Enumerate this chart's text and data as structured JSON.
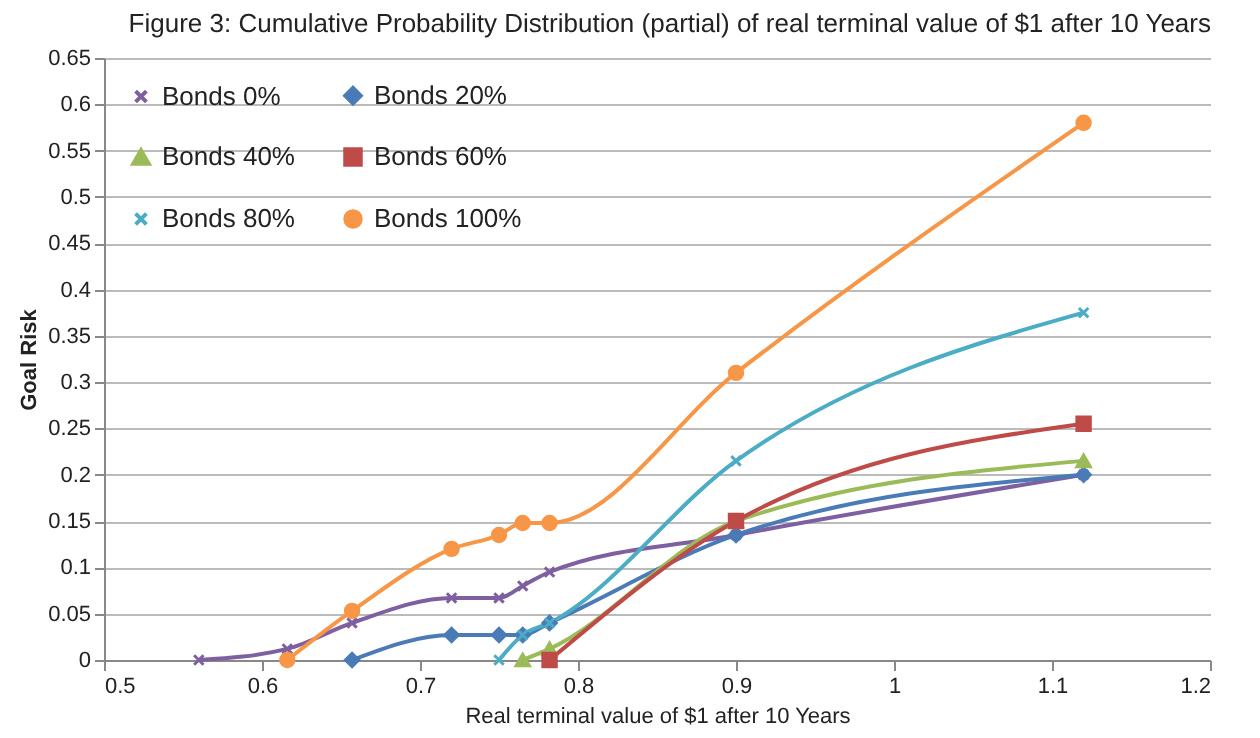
{
  "chart_data": {
    "type": "line",
    "title": "Figure 3: Cumulative Probability Distribution (partial) of  real terminal value of $1 after 10 Years",
    "xlabel": "Real terminal value of $1 after  10 Years",
    "ylabel": "Goal Risk",
    "xlim": [
      0.5,
      1.2
    ],
    "xticks": [
      0.5,
      0.6,
      0.7,
      0.8,
      0.9,
      1,
      1.1,
      1.2
    ],
    "ylim": [
      0,
      0.65
    ],
    "yticks": [
      0,
      0.05,
      0.1,
      0.15,
      0.2,
      0.25,
      0.3,
      0.35,
      0.4,
      0.45,
      0.5,
      0.55,
      0.6,
      0.65
    ],
    "grid": "y",
    "legend": "top left",
    "series": [
      {
        "name": "Bonds 0%",
        "color": "#7e5fa0",
        "marker": "cross",
        "x": [
          0.56,
          0.616,
          0.657,
          0.72,
          0.75,
          0.765,
          0.782,
          0.9,
          1.12
        ],
        "values": [
          0,
          0.012,
          0.04,
          0.067,
          0.067,
          0.08,
          0.095,
          0.135,
          0.2
        ]
      },
      {
        "name": "Bonds 20%",
        "color": "#4a7bb7",
        "marker": "diamond",
        "x": [
          0.657,
          0.72,
          0.75,
          0.765,
          0.782,
          0.9,
          1.12
        ],
        "values": [
          0,
          0.027,
          0.027,
          0.027,
          0.04,
          0.135,
          0.2
        ]
      },
      {
        "name": "Bonds 40%",
        "color": "#9bbb59",
        "marker": "triangle",
        "x": [
          0.765,
          0.782,
          0.9,
          1.12
        ],
        "values": [
          0,
          0.012,
          0.15,
          0.215
        ]
      },
      {
        "name": "Bonds 60%",
        "color": "#be4b48",
        "marker": "square",
        "x": [
          0.782,
          0.9,
          1.12
        ],
        "values": [
          0,
          0.15,
          0.255
        ]
      },
      {
        "name": "Bonds 80%",
        "color": "#4bacc6",
        "marker": "cross",
        "x": [
          0.75,
          0.765,
          0.782,
          0.9,
          1.12
        ],
        "values": [
          0,
          0.027,
          0.04,
          0.215,
          0.375
        ]
      },
      {
        "name": "Bonds 100%",
        "color": "#f79646",
        "marker": "circle",
        "x": [
          0.616,
          0.657,
          0.72,
          0.75,
          0.765,
          0.782,
          0.9,
          1.12
        ],
        "values": [
          0,
          0.053,
          0.12,
          0.135,
          0.148,
          0.148,
          0.31,
          0.58
        ]
      }
    ]
  }
}
